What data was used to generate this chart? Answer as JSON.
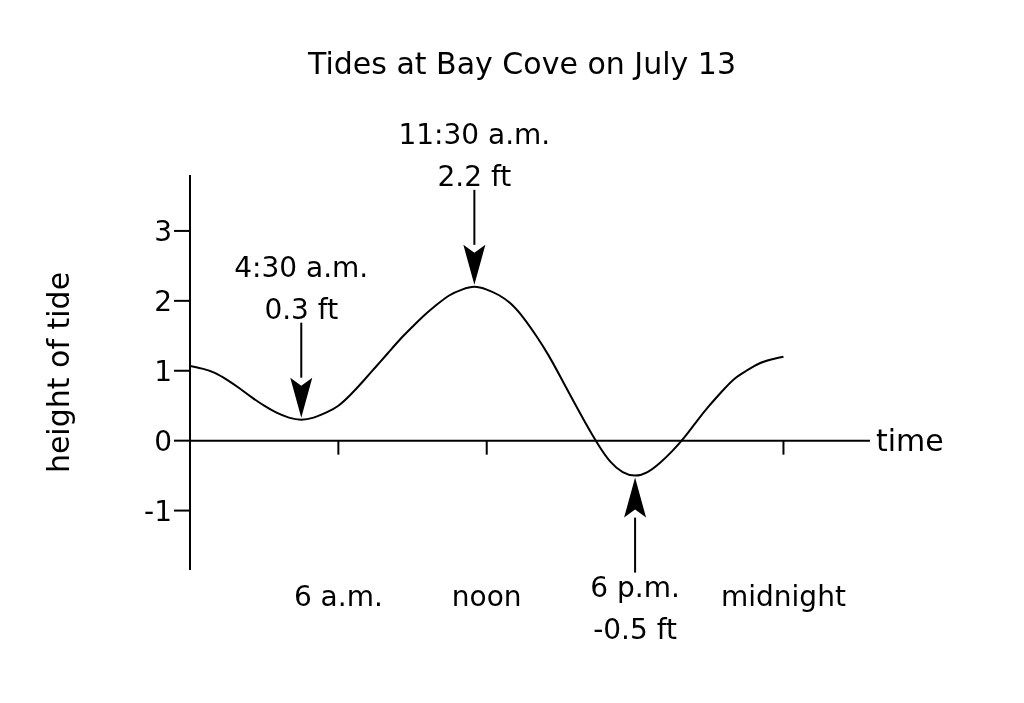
{
  "chart_data": {
    "type": "line",
    "title": "Tides at Bay Cove on July 13",
    "xlabel": "time",
    "ylabel": "height of tide",
    "categories": [
      null,
      null,
      null,
      null,
      null,
      null,
      null,
      null,
      null,
      null,
      null,
      null,
      "6 a.m.",
      null,
      null,
      null,
      null,
      null,
      null,
      null,
      null,
      null,
      null,
      null,
      "noon",
      null,
      null,
      null,
      null,
      null,
      null,
      null,
      null,
      null,
      null,
      null,
      null,
      null,
      null,
      null,
      null,
      null,
      null,
      null,
      null,
      null,
      null,
      null,
      "midnight",
      null,
      null,
      null,
      null,
      null,
      null,
      null
    ],
    "values": [
      1.07,
      1.03,
      0.97,
      0.87,
      0.75,
      0.62,
      0.5,
      0.4,
      0.33,
      0.3,
      0.33,
      0.4,
      0.5,
      0.66,
      0.85,
      1.05,
      1.25,
      1.45,
      1.63,
      1.8,
      1.95,
      2.08,
      2.16,
      2.2,
      2.16,
      2.08,
      1.95,
      1.75,
      1.5,
      1.22,
      0.9,
      0.57,
      0.25,
      -0.05,
      -0.3,
      -0.45,
      -0.5,
      -0.45,
      -0.32,
      -0.15,
      0.05,
      0.28,
      0.5,
      0.7,
      0.88,
      1.0,
      1.1,
      1.16,
      1.2,
      null,
      null,
      null,
      null,
      null,
      null,
      null
    ],
    "color": "#000000",
    "ylim": [
      -1.85,
      3.8
    ],
    "yticks": [
      -1,
      0,
      1,
      2,
      3
    ],
    "annotations": [
      "4:30 a.m.\n0.3 ft",
      "11:30 a.m.\n2.2 ft",
      "6 p.m.\n-0.5 ft"
    ]
  }
}
